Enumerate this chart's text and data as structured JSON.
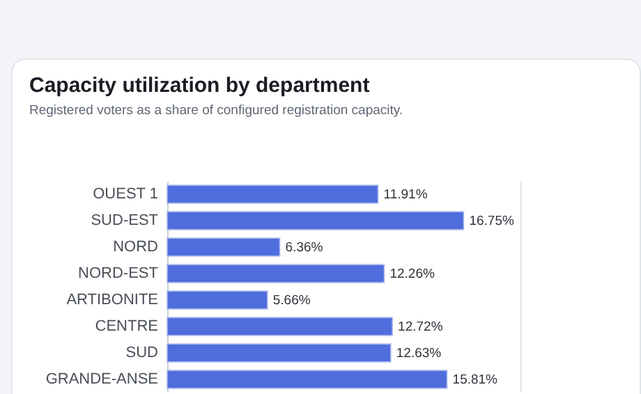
{
  "chart_data": {
    "type": "bar",
    "orientation": "horizontal",
    "title": "Capacity utilization by department",
    "subtitle": "Registered voters as a share of configured registration capacity.",
    "categories": [
      "OUEST 1",
      "SUD-EST",
      "NORD",
      "NORD-EST",
      "ARTIBONITE",
      "CENTRE",
      "SUD",
      "GRANDE-ANSE"
    ],
    "values": [
      11.91,
      16.75,
      6.36,
      12.26,
      5.66,
      12.72,
      12.63,
      15.81
    ],
    "value_labels": [
      "11.91%",
      "16.75%",
      "6.36%",
      "12.26%",
      "5.66%",
      "12.72%",
      "12.63%",
      "15.81%"
    ],
    "color": "#4f6ddc",
    "xlim": [
      0,
      20
    ],
    "grid": false
  }
}
